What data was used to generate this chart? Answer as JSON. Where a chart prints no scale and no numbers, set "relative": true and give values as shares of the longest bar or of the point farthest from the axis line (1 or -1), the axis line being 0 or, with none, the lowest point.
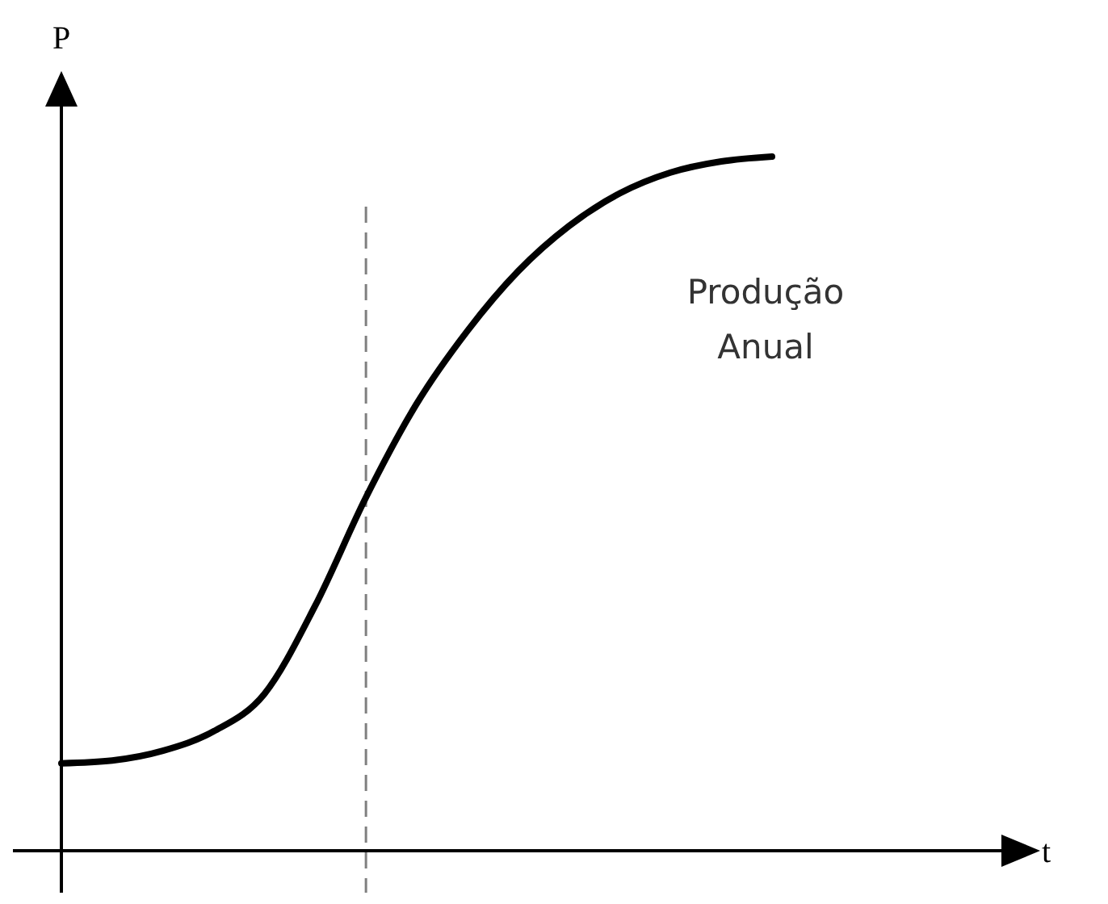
{
  "chart_data": {
    "type": "line",
    "relative": true,
    "ylabel": "P",
    "color": "#000000",
    "categories": [
      null,
      null,
      null,
      null,
      null,
      null,
      null,
      null,
      null,
      null,
      null,
      null,
      null,
      null,
      null
    ],
    "values": [
      0.126,
      0.13,
      0.144,
      0.172,
      0.226,
      0.353,
      0.509,
      0.644,
      0.749,
      0.835,
      0.9,
      0.947,
      0.977,
      0.993,
      1
    ],
    "annotations": [
      "Produção Anual",
      "t"
    ]
  }
}
